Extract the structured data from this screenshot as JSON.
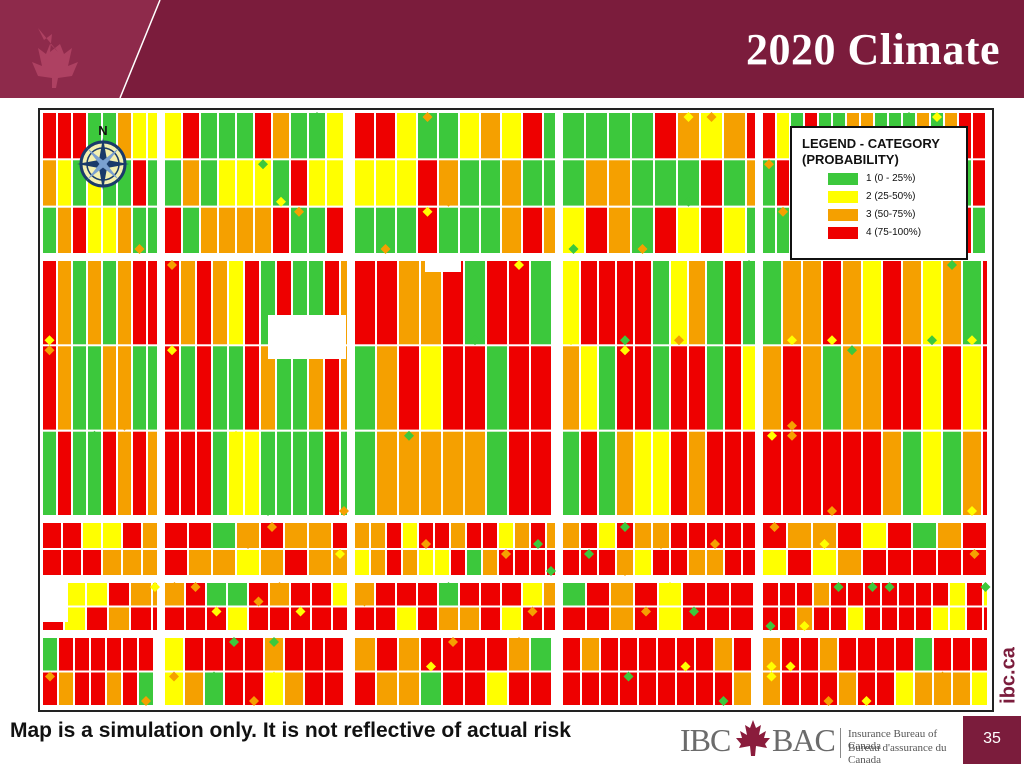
{
  "slide": {
    "title": "2020 Climate",
    "footnote": "Map is a simulation only. It is not reflective of actual risk",
    "url": "ibc.ca",
    "page_number": "35"
  },
  "logo": {
    "ibc": "IBC",
    "bac": "BAC",
    "english_name": "Insurance Bureau of Canada",
    "french_name": "Bureau d'assurance du Canada"
  },
  "map": {
    "north_label": "N",
    "legend": {
      "title_line1": "LEGEND - CATEGORY",
      "title_line2": "(PROBABILITY)",
      "items": [
        {
          "label": "1 (0 - 25%)",
          "color": "#3cc83c"
        },
        {
          "label": "2 (25-50%)",
          "color": "#ffff00"
        },
        {
          "label": "3 (50-75%)",
          "color": "#f5a000"
        },
        {
          "label": "4 (75-100%)",
          "color": "#ee0000"
        }
      ]
    }
  },
  "colors": {
    "banner": "#7b1c3c",
    "category_1": "#3cc83c",
    "category_2": "#ffff00",
    "category_3": "#f5a000",
    "category_4": "#ee0000"
  }
}
